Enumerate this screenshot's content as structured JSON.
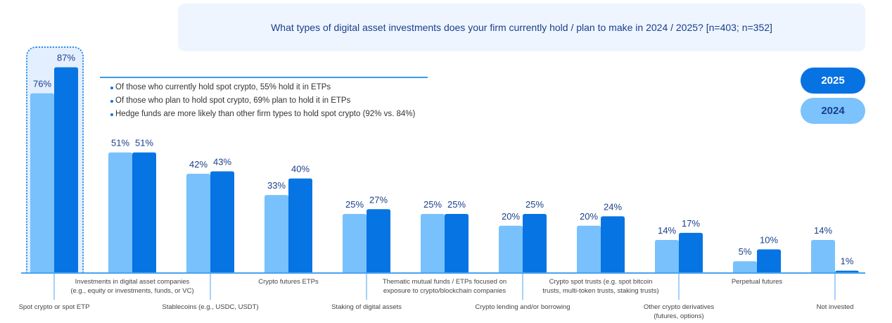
{
  "chart_data": {
    "type": "bar",
    "title": "What types of digital asset investments does your firm currently hold / plan to make in 2024 / 2025? [n=403; n=352]",
    "categories": [
      [
        "Spot crypto or spot ETP"
      ],
      [
        "Investments in digital asset companies",
        "(e.g., equity or investments, funds, or VC)"
      ],
      [
        "Stablecoins (e.g., USDC, USDT)"
      ],
      [
        "Crypto futures ETPs"
      ],
      [
        "Staking of digital assets"
      ],
      [
        "Thematic mutual funds / ETPs focused on",
        "exposure to crypto/blockchain companies"
      ],
      [
        "Crypto lending and/or borrowing"
      ],
      [
        "Crypto spot trusts (e.g. spot bitcoin",
        "trusts, multi-token trusts, staking trusts)"
      ],
      [
        "Other crypto derivatives",
        "(futures, options)"
      ],
      [
        "Perpetual futures"
      ],
      [
        "Not invested"
      ]
    ],
    "series": [
      {
        "name": "2024",
        "color": "#78c1fc",
        "values": [
          76,
          51,
          42,
          33,
          25,
          25,
          20,
          20,
          14,
          5,
          14
        ]
      },
      {
        "name": "2025",
        "color": "#0774e4",
        "values": [
          87,
          51,
          43,
          40,
          27,
          25,
          25,
          24,
          17,
          10,
          1
        ]
      }
    ],
    "value_format": "%",
    "ylim": [
      0,
      100
    ],
    "grid": false,
    "legend_placement": "top-right",
    "highlighted_category": "Spot crypto or spot ETP"
  },
  "annotations": [
    "Of those who currently hold spot crypto, 55% hold it in ETPs",
    "Of those who plan to hold spot crypto, 69% plan to hold it in ETPs",
    "Hedge funds are more likely than other firm types to hold spot crypto (92% vs. 84%)"
  ],
  "legend": {
    "first": "2025",
    "second": "2024"
  }
}
